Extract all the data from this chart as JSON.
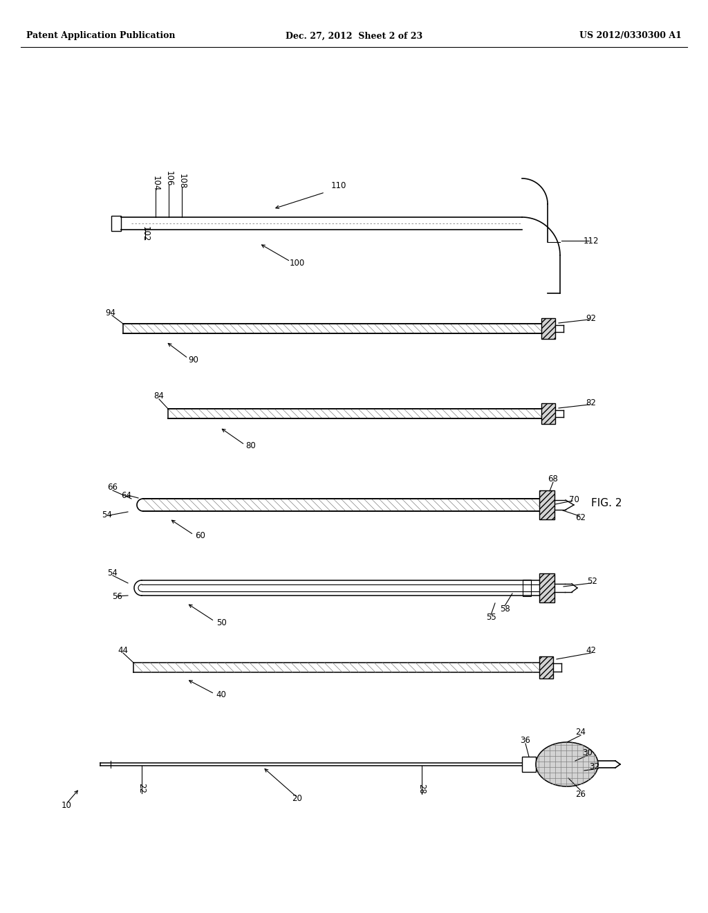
{
  "background_color": "#ffffff",
  "header_left": "Patent Application Publication",
  "header_center": "Dec. 27, 2012  Sheet 2 of 23",
  "header_right": "US 2012/0330300 A1",
  "fig_label": "FIG. 2",
  "fig_width": 10.24,
  "fig_height": 13.2
}
